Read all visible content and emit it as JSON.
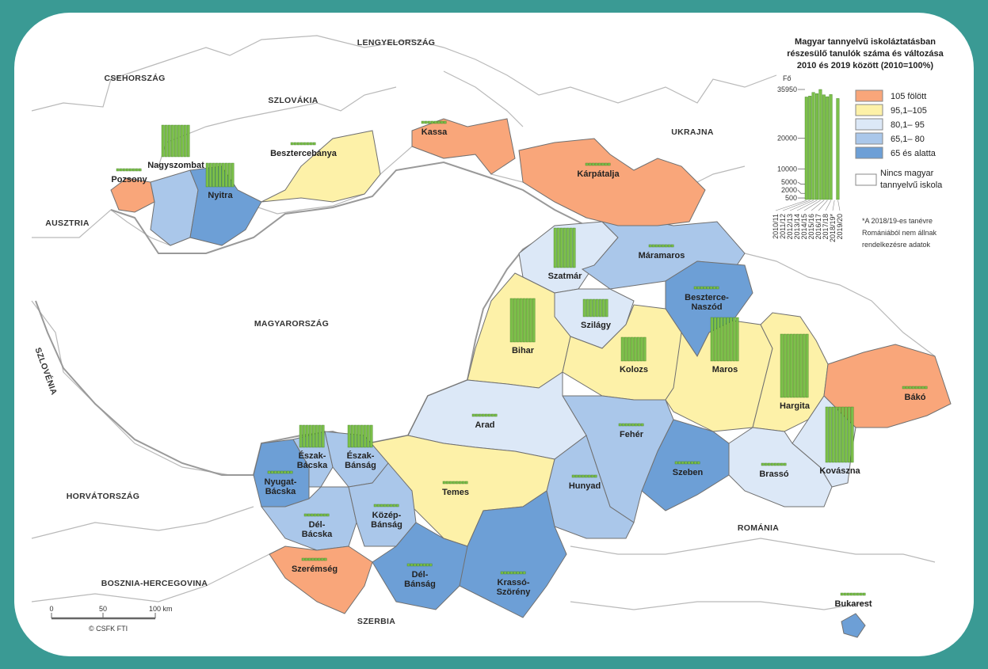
{
  "legend": {
    "title_lines": [
      "Magyar tannyelvű iskoláztatásban",
      "részesülő tanulók száma és változása",
      "2010 és 2019 között (2010=100%)"
    ],
    "y_unit": "Fő",
    "y_ticks": [
      "35950",
      "20000",
      "10000",
      "5000",
      "2000",
      "500"
    ],
    "years": [
      "2010/11",
      "2011/12",
      "2012/13",
      "2013/14",
      "2014/15",
      "2015/16",
      "2016/17",
      "2017/18",
      "2018/19*",
      "2019/20"
    ],
    "categories": [
      {
        "label": "105 fölött",
        "color": "#f9a67a"
      },
      {
        "label": "95,1–105",
        "color": "#fdf1a8"
      },
      {
        "label": "80,1– 95",
        "color": "#dce8f7"
      },
      {
        "label": "65,1– 80",
        "color": "#aac7ea"
      },
      {
        "label": "65 és alatta",
        "color": "#6d9fd6"
      }
    ],
    "none_label_1": "Nincs magyar",
    "none_label_2": "tannyelvű iskola",
    "footnote": [
      "*A 2018/19-es tanévre",
      "Romániából nem állnak",
      "rendelkezésre adatok"
    ]
  },
  "chart_data": {
    "type": "bar",
    "categories": [
      "2010/11",
      "2011/12",
      "2012/13",
      "2013/14",
      "2014/15",
      "2015/16",
      "2016/17",
      "2017/18",
      "2018/19*",
      "2019/20"
    ],
    "values": [
      33500,
      33800,
      35000,
      34600,
      35950,
      34200,
      33600,
      34300,
      null,
      33000
    ],
    "ylabel": "Fő",
    "ylim": [
      0,
      35950
    ],
    "bar_color": "#7cc04a"
  },
  "countries": [
    "CSEHORSZÁG",
    "LENGYELORSZÁG",
    "SZLOVÁKIA",
    "UKRAJNA",
    "AUSZTRIA",
    "MAGYARORSZÁG",
    "SZLOVÉNIA",
    "HORVÁTORSZÁG",
    "BOSZNIA-HERCEGOVINA",
    "SZERBIA",
    "ROMÁNIA"
  ],
  "regions": [
    {
      "name": "Szatmár",
      "category": 2
    },
    {
      "name": "Máramaros",
      "category": 3
    },
    {
      "name": "Beszterce-Naszód",
      "category": 4
    },
    {
      "name": "Szilágy",
      "category": 2
    },
    {
      "name": "Bihar",
      "category": 1
    },
    {
      "name": "Kolozs",
      "category": 1
    },
    {
      "name": "Maros",
      "category": 1
    },
    {
      "name": "Hargita",
      "category": 1
    },
    {
      "name": "Bákó",
      "category": 0
    },
    {
      "name": "Kovászna",
      "category": 2
    },
    {
      "name": "Brassó",
      "category": 2
    },
    {
      "name": "Szeben",
      "category": 4
    },
    {
      "name": "Fehér",
      "category": 3
    },
    {
      "name": "Arad",
      "category": 2
    },
    {
      "name": "Hunyad",
      "category": 3
    },
    {
      "name": "Temes",
      "category": 1
    },
    {
      "name": "Krassó-Szörény",
      "category": 4
    },
    {
      "name": "Nyugat-Bácska",
      "category": 4
    },
    {
      "name": "Észak-Bácska",
      "category": 3
    },
    {
      "name": "Észak-Bánság",
      "category": 3
    },
    {
      "name": "Dél-Bácska",
      "category": 3
    },
    {
      "name": "Közép-Bánság",
      "category": 3
    },
    {
      "name": "Szerémség",
      "category": 0
    },
    {
      "name": "Dél-Bánság",
      "category": 4
    },
    {
      "name": "Bukarest",
      "category": 4
    },
    {
      "name": "Pozsony",
      "category": 0
    },
    {
      "name": "Nagyszombat",
      "category": 3
    },
    {
      "name": "Nyitra",
      "category": 4
    },
    {
      "name": "Besztercebánya",
      "category": 1
    },
    {
      "name": "Kassa",
      "category": 0
    },
    {
      "name": "Kárpátalja",
      "category": 0
    }
  ],
  "scale": {
    "ticks": [
      "0",
      "50",
      "100 km"
    ],
    "credit": "© CSFK FTI"
  }
}
